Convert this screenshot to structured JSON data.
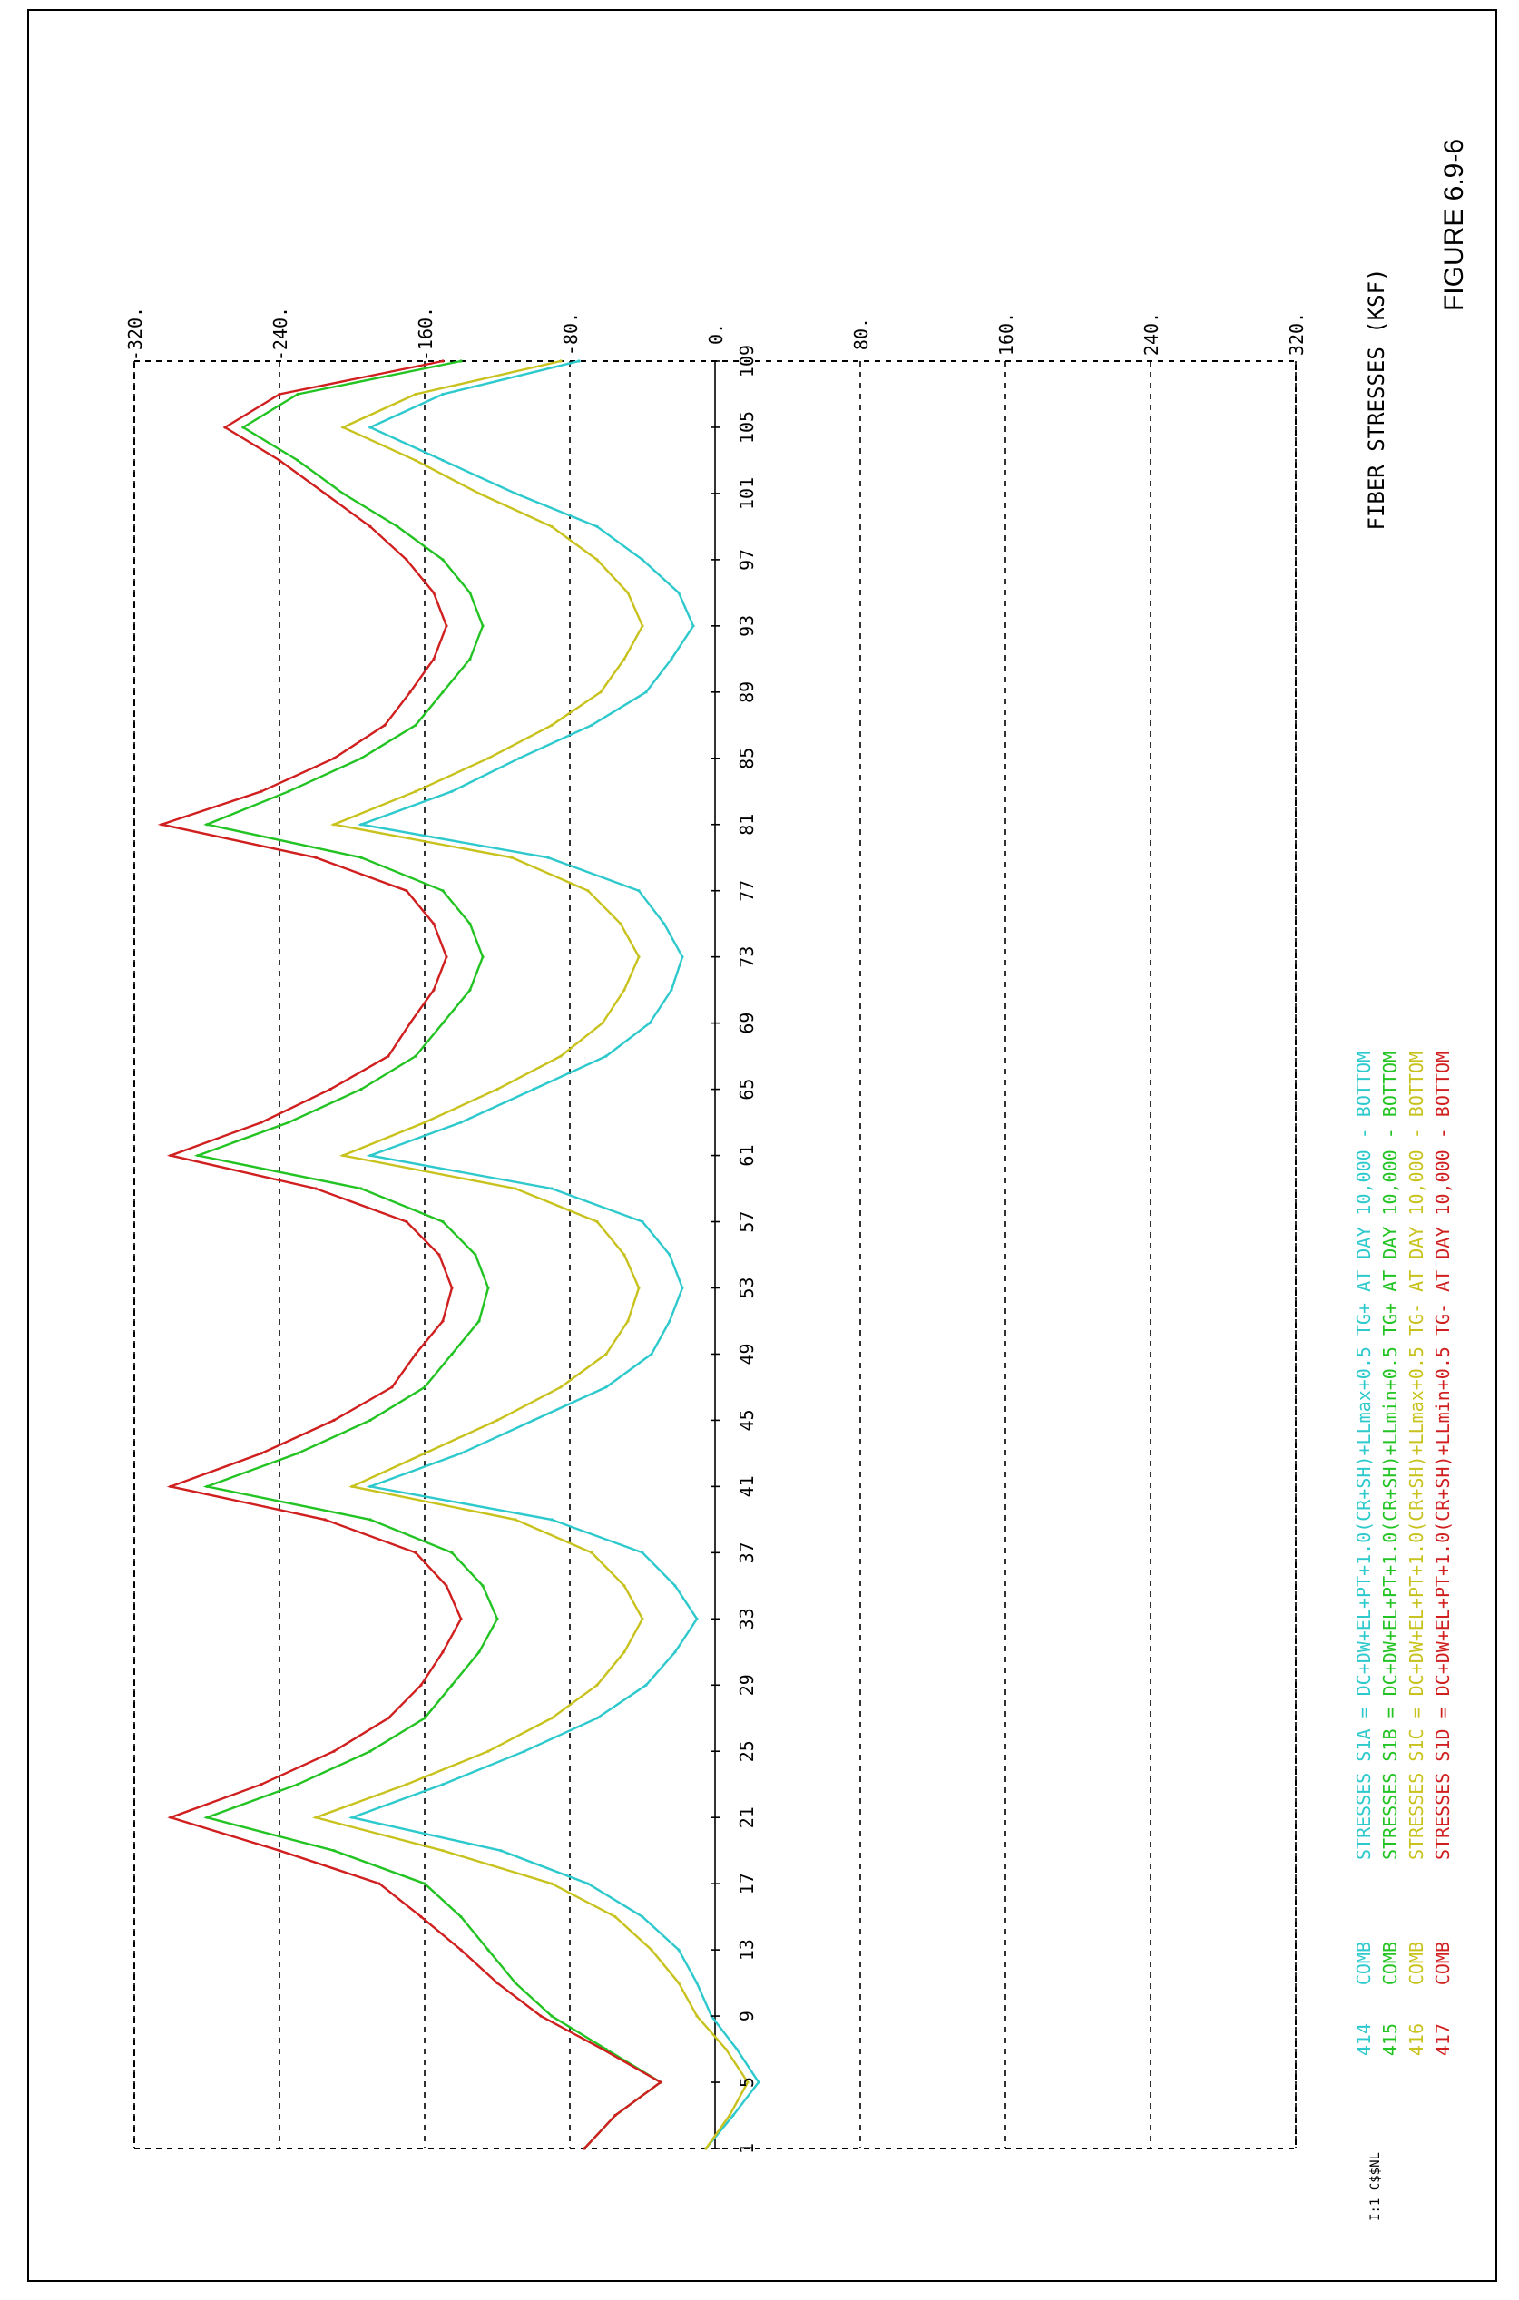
{
  "figure_label": "FIGURE 6.9-6",
  "corner_code": "I:1 C$$NL",
  "colors": {
    "S1A": "#2ec9cc",
    "S1B": "#22c322",
    "S1C": "#c8c21e",
    "S1D": "#d01f1f",
    "grid": "#000000"
  },
  "chart_data": {
    "type": "line",
    "orientation": "rotated-90",
    "ylabel": "FIBER STRESSES (KSF)",
    "ylim": [
      -320,
      320
    ],
    "y_ticks": [
      -320,
      -240,
      -160,
      -80,
      0,
      80,
      160,
      240,
      320
    ],
    "y_tick_labels": [
      "-320.",
      "-240.",
      "-160.",
      "-80.",
      "0.",
      "80.",
      "160.",
      "240.",
      "320."
    ],
    "xlim": [
      1,
      109
    ],
    "x_tick_positions": [
      1,
      5,
      9,
      13,
      17,
      21,
      25,
      29,
      33,
      37,
      41,
      45,
      49,
      53,
      57,
      61,
      65,
      69,
      73,
      77,
      81,
      85,
      89,
      93,
      97,
      101,
      105,
      109
    ],
    "x_tick_labels": [
      "1",
      "5",
      "9",
      "13",
      "17",
      "21",
      "25",
      "29",
      "33",
      "37",
      "41",
      "45",
      "49",
      "53",
      "57",
      "61",
      "65",
      "69",
      "73",
      "77",
      "81",
      "85",
      "89",
      "93",
      "97",
      "101",
      "105",
      "109"
    ],
    "grid": "dashed",
    "legend_position": "right-bottom",
    "series": [
      {
        "key": "S1A",
        "legend": {
          "id": "414",
          "comb": "COMB",
          "name": "STRESSES S1A = DC+DW+EL+PT+1.0(CR+SH)+LLmax+0.5 TG+ AT DAY 10,000 - BOTTOM"
        },
        "x": [
          1,
          3,
          5,
          7,
          9,
          11,
          13,
          15,
          17,
          19,
          21,
          23,
          25,
          27,
          29,
          31,
          33,
          35,
          37,
          39,
          41,
          43,
          45,
          47,
          49,
          51,
          53,
          55,
          57,
          59,
          61,
          63,
          65,
          67,
          69,
          71,
          73,
          75,
          77,
          79,
          81,
          83,
          85,
          87,
          89,
          91,
          93,
          95,
          97,
          99,
          101,
          103,
          105,
          107,
          109
        ],
        "y": [
          -5,
          10,
          24,
          12,
          -2,
          -10,
          -20,
          -40,
          -70,
          -118,
          -200,
          -150,
          -105,
          -65,
          -38,
          -22,
          -10,
          -22,
          -40,
          -90,
          -190,
          -140,
          -100,
          -60,
          -35,
          -25,
          -18,
          -25,
          -40,
          -90,
          -190,
          -140,
          -100,
          -60,
          -36,
          -24,
          -18,
          -28,
          -42,
          -92,
          -195,
          -145,
          -108,
          -68,
          -38,
          -24,
          -12,
          -20,
          -40,
          -65,
          -110,
          -150,
          -190,
          -150,
          -75
        ]
      },
      {
        "key": "S1B",
        "legend": {
          "id": "415",
          "comb": "COMB",
          "name": "STRESSES S1B = DC+DW+EL+PT+1.0(CR+SH)+LLmin+0.5 TG+ AT DAY 10,000 - BOTTOM"
        },
        "x": [
          1,
          3,
          5,
          7,
          9,
          11,
          13,
          15,
          17,
          19,
          21,
          23,
          25,
          27,
          29,
          31,
          33,
          35,
          37,
          39,
          41,
          43,
          45,
          47,
          49,
          51,
          53,
          55,
          57,
          59,
          61,
          63,
          65,
          67,
          69,
          71,
          73,
          75,
          77,
          79,
          81,
          83,
          85,
          87,
          89,
          91,
          93,
          95,
          97,
          99,
          101,
          103,
          105,
          107,
          109
        ],
        "y": [
          -72,
          -55,
          -30,
          -60,
          -90,
          -110,
          -125,
          -140,
          -160,
          -210,
          -280,
          -230,
          -190,
          -160,
          -145,
          -130,
          -120,
          -128,
          -145,
          -190,
          -280,
          -230,
          -190,
          -160,
          -145,
          -130,
          -125,
          -132,
          -150,
          -195,
          -285,
          -235,
          -195,
          -165,
          -150,
          -135,
          -128,
          -135,
          -150,
          -195,
          -280,
          -235,
          -195,
          -165,
          -150,
          -135,
          -128,
          -135,
          -150,
          -175,
          -205,
          -230,
          -260,
          -230,
          -140
        ]
      },
      {
        "key": "S1C",
        "legend": {
          "id": "416",
          "comb": "COMB",
          "name": "STRESSES S1C = DC+DW+EL+PT+1.0(CR+SH)+LLmax+0.5 TG- AT DAY 10,000 - BOTTOM"
        },
        "x": [
          1,
          3,
          5,
          7,
          9,
          11,
          13,
          15,
          17,
          19,
          21,
          23,
          25,
          27,
          29,
          31,
          33,
          35,
          37,
          39,
          41,
          43,
          45,
          47,
          49,
          51,
          53,
          55,
          57,
          59,
          61,
          63,
          65,
          67,
          69,
          71,
          73,
          75,
          77,
          79,
          81,
          83,
          85,
          87,
          89,
          91,
          93,
          95,
          97,
          99,
          101,
          103,
          105,
          107,
          109
        ],
        "y": [
          -5,
          8,
          18,
          6,
          -10,
          -20,
          -35,
          -55,
          -90,
          -150,
          -220,
          -170,
          -125,
          -90,
          -65,
          -50,
          -40,
          -50,
          -68,
          -110,
          -200,
          -160,
          -120,
          -85,
          -60,
          -48,
          -42,
          -50,
          -65,
          -110,
          -205,
          -160,
          -120,
          -85,
          -62,
          -50,
          -42,
          -52,
          -70,
          -112,
          -210,
          -165,
          -125,
          -90,
          -63,
          -50,
          -40,
          -48,
          -65,
          -90,
          -130,
          -165,
          -205,
          -165,
          -85
        ]
      },
      {
        "key": "S1D",
        "legend": {
          "id": "417",
          "comb": "COMB",
          "name": "STRESSES S1D = DC+DW+EL+PT+1.0(CR+SH)+LLmin+0.5 TG- AT DAY 10,000 - BOTTOM"
        },
        "x": [
          1,
          3,
          5,
          7,
          9,
          11,
          13,
          15,
          17,
          19,
          21,
          23,
          25,
          27,
          29,
          31,
          33,
          35,
          37,
          39,
          41,
          43,
          45,
          47,
          49,
          51,
          53,
          55,
          57,
          59,
          61,
          63,
          65,
          67,
          69,
          71,
          73,
          75,
          77,
          79,
          81,
          83,
          85,
          87,
          89,
          91,
          93,
          95,
          97,
          99,
          101,
          103,
          105,
          107,
          109
        ],
        "y": [
          -72,
          -55,
          -30,
          -62,
          -96,
          -120,
          -140,
          -162,
          -185,
          -240,
          -300,
          -250,
          -210,
          -180,
          -162,
          -150,
          -140,
          -148,
          -165,
          -215,
          -300,
          -250,
          -210,
          -178,
          -165,
          -150,
          -145,
          -152,
          -170,
          -220,
          -300,
          -250,
          -212,
          -180,
          -168,
          -155,
          -148,
          -155,
          -170,
          -220,
          -305,
          -250,
          -210,
          -182,
          -168,
          -155,
          -148,
          -155,
          -170,
          -190,
          -215,
          -240,
          -270,
          -240,
          -150
        ]
      }
    ]
  }
}
